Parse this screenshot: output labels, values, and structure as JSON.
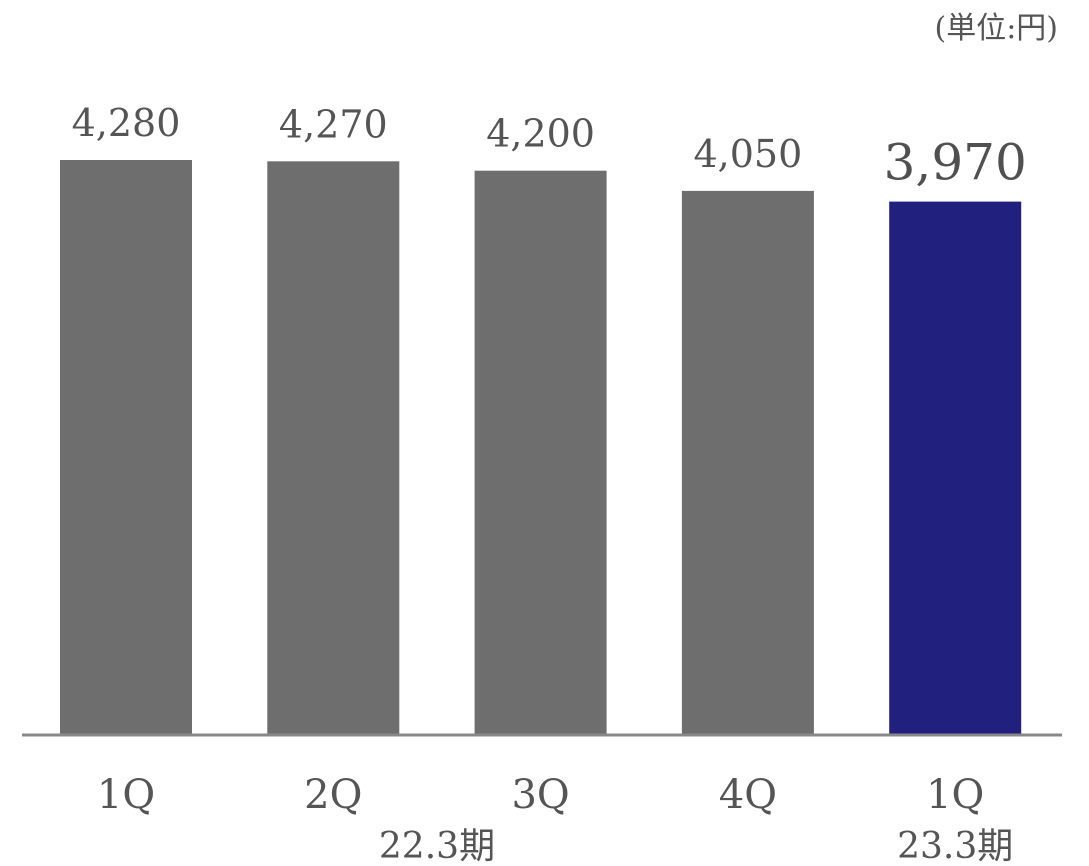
{
  "chart_data": {
    "type": "bar",
    "unit_label": "(単位:円)",
    "categories": [
      "1Q",
      "2Q",
      "3Q",
      "4Q",
      "1Q"
    ],
    "values": [
      4280,
      4270,
      4200,
      4050,
      3970
    ],
    "value_labels": [
      "4,280",
      "4,270",
      "4,200",
      "4,050",
      "3,970"
    ],
    "groups": [
      {
        "label": "22.3期",
        "categories": [
          "1Q",
          "2Q",
          "3Q",
          "4Q"
        ]
      },
      {
        "label": "23.3期",
        "categories": [
          "1Q"
        ]
      }
    ],
    "colors": {
      "default_bar": "#6e6e6e",
      "highlight_bar": "#22207e",
      "axis": "#888888"
    },
    "highlight_index": 4,
    "ylim": [
      0,
      4280
    ],
    "grid": false
  }
}
